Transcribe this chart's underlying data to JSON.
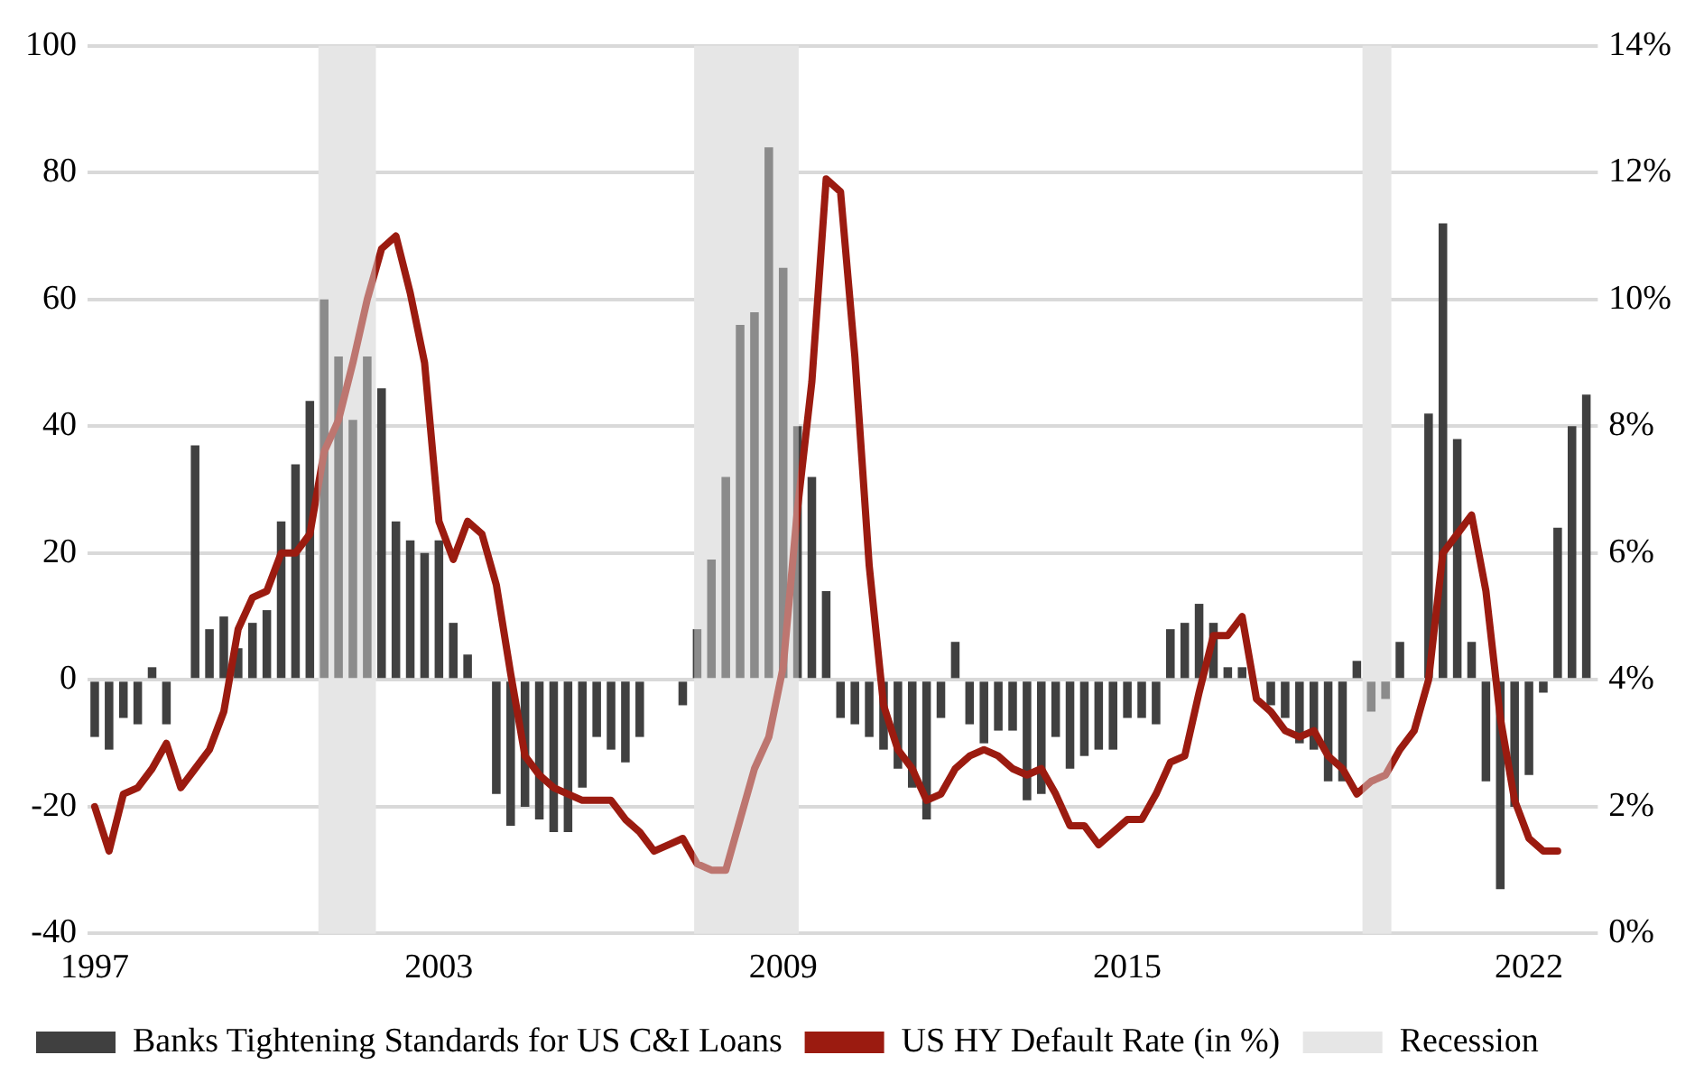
{
  "chart_data": {
    "type": "bar",
    "x": [
      1997,
      1997.25,
      1997.5,
      1997.75,
      1998,
      1998.25,
      1998.5,
      1998.75,
      1999,
      1999.25,
      1999.5,
      1999.75,
      2000,
      2000.25,
      2000.5,
      2000.75,
      2001,
      2001.25,
      2001.5,
      2001.75,
      2002,
      2002.25,
      2002.5,
      2002.75,
      2003,
      2003.25,
      2003.5,
      2003.75,
      2004,
      2004.25,
      2004.5,
      2004.75,
      2005,
      2005.25,
      2005.5,
      2005.75,
      2006,
      2006.25,
      2006.5,
      2006.75,
      2007,
      2007.25,
      2007.5,
      2007.75,
      2008,
      2008.25,
      2008.5,
      2008.75,
      2009,
      2009.25,
      2009.5,
      2009.75,
      2010,
      2010.25,
      2010.5,
      2010.75,
      2011,
      2011.25,
      2011.5,
      2011.75,
      2012,
      2012.25,
      2012.5,
      2012.75,
      2013,
      2013.25,
      2013.5,
      2013.75,
      2014,
      2014.25,
      2014.5,
      2014.75,
      2015,
      2015.25,
      2015.5,
      2015.75,
      2016,
      2016.25,
      2016.5,
      2016.75,
      2017,
      2017.25,
      2017.5,
      2017.75,
      2018,
      2018.25,
      2018.5,
      2018.75,
      2019,
      2019.25,
      2019.5,
      2019.75,
      2020,
      2020.25,
      2020.5,
      2020.75,
      2021,
      2021.25,
      2021.5,
      2021.75,
      2022,
      2022.25,
      2022.5,
      2022.75,
      2023
    ],
    "series": [
      {
        "name": "Banks Tightening Standards for US C&I Loans",
        "color": "#404040",
        "values": [
          -9,
          -11,
          -6,
          -7,
          2,
          -7,
          0,
          37,
          8,
          10,
          5,
          9,
          11,
          25,
          34,
          44,
          60,
          51,
          41,
          51,
          46,
          25,
          22,
          20,
          22,
          9,
          4,
          0,
          -18,
          -23,
          -20,
          -22,
          -24,
          -24,
          -17,
          -9,
          -11,
          -13,
          -9,
          0,
          0,
          -4,
          8,
          19,
          32,
          56,
          58,
          84,
          65,
          40,
          32,
          14,
          -6,
          -7,
          -9,
          -11,
          -14,
          -17,
          -22,
          -6,
          6,
          -7,
          -10,
          -8,
          -8,
          -19,
          -18,
          -9,
          -14,
          -12,
          -11,
          -11,
          -6,
          -6,
          -7,
          8,
          9,
          12,
          9,
          2,
          2,
          null,
          -4,
          -6,
          -10,
          -11,
          -16,
          -16,
          3,
          -5,
          -3,
          6,
          0,
          42,
          72,
          38,
          6,
          -16,
          -33,
          -20,
          -15,
          -2,
          24,
          40,
          45
        ]
      },
      {
        "type": "line",
        "name": "US HY Default Rate (in %)",
        "color": "#9b1b10",
        "axis": "y2",
        "values": [
          2.0,
          1.3,
          2.2,
          2.3,
          2.6,
          3.0,
          2.3,
          2.6,
          2.9,
          3.5,
          4.8,
          5.3,
          5.4,
          6.0,
          6.0,
          6.3,
          7.6,
          8.1,
          9.0,
          10.0,
          10.8,
          11.0,
          10.1,
          9.0,
          6.5,
          5.9,
          6.5,
          6.3,
          5.5,
          4.1,
          2.8,
          2.5,
          2.3,
          2.2,
          2.1,
          2.1,
          2.1,
          1.8,
          1.6,
          1.3,
          1.4,
          1.5,
          1.1,
          1.0,
          1.0,
          1.8,
          2.6,
          3.1,
          4.2,
          6.7,
          8.7,
          11.9,
          11.7,
          9.1,
          5.8,
          3.6,
          2.9,
          2.6,
          2.1,
          2.2,
          2.6,
          2.8,
          2.9,
          2.8,
          2.6,
          2.5,
          2.6,
          2.2,
          1.7,
          1.7,
          1.4,
          1.6,
          1.8,
          1.8,
          2.2,
          2.7,
          2.8,
          3.8,
          4.7,
          4.7,
          5.0,
          3.7,
          3.5,
          3.2,
          3.1,
          3.2,
          2.8,
          2.6,
          2.2,
          2.4,
          2.5,
          2.9,
          3.2,
          4.0,
          6.0,
          6.3,
          6.6,
          5.4,
          3.4,
          2.1,
          1.5,
          1.3,
          1.3,
          null,
          null
        ]
      }
    ],
    "xlim": [
      1996.875,
      2023.2
    ],
    "xticks": [
      1997,
      2003,
      2009,
      2015,
      2022
    ],
    "ylim": [
      -40,
      100
    ],
    "yticks": [
      -40,
      -20,
      0,
      20,
      40,
      60,
      80,
      100
    ],
    "y2lim": [
      0,
      14
    ],
    "y2ticks": [
      {
        "value": 0,
        "label": "0%"
      },
      {
        "value": 2,
        "label": "2%"
      },
      {
        "value": 4,
        "label": "4%"
      },
      {
        "value": 6,
        "label": "6%"
      },
      {
        "value": 8,
        "label": "8%"
      },
      {
        "value": 10,
        "label": "10%"
      },
      {
        "value": 12,
        "label": "12%"
      },
      {
        "value": 14,
        "label": "14%"
      }
    ],
    "bands": [
      {
        "axis": "x",
        "from": 2000.9,
        "to": 2001.9,
        "label": "Recession",
        "color": "#e6e6e6"
      },
      {
        "axis": "x",
        "from": 2007.45,
        "to": 2009.27,
        "color": "#e6e6e6"
      },
      {
        "axis": "x",
        "from": 2019.1,
        "to": 2019.6,
        "color": "#e6e6e6"
      }
    ],
    "grid": "y",
    "legend": "bottom",
    "marker": "none"
  }
}
